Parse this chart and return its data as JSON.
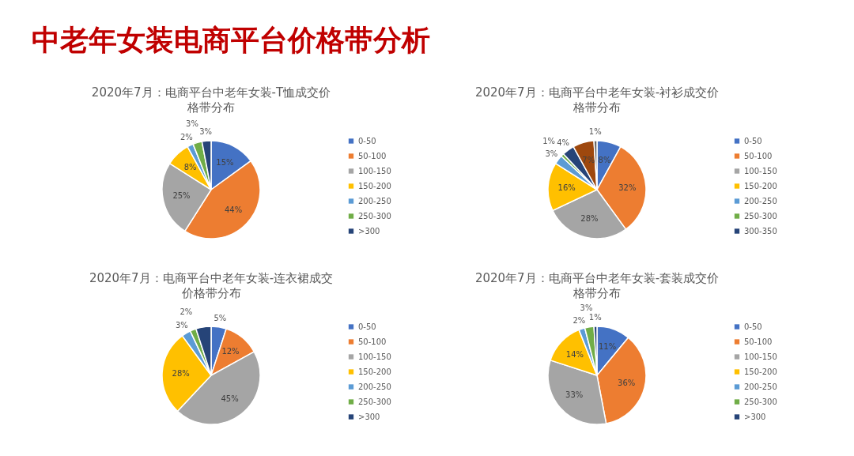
{
  "chart_data": [
    {
      "type": "other",
      "title": "中老年女装电商平台价格带分析"
    },
    {
      "type": "pie",
      "title": "2020年7月：电商平台中老年女装-T恤成交价格带分布",
      "categories": [
        "0-50",
        "50-100",
        "100-150",
        "150-200",
        "200-250",
        "250-300",
        ">300"
      ],
      "values": [
        15,
        44,
        25,
        8,
        2,
        3,
        3
      ],
      "colors": [
        "#4472c4",
        "#ed7d31",
        "#a5a5a5",
        "#ffc000",
        "#5b9bd5",
        "#70ad47",
        "#264478"
      ],
      "value_labels": [
        "15%",
        "44%",
        "25%",
        "8%",
        "2%",
        "3%",
        "3%"
      ],
      "legend": "right"
    },
    {
      "type": "pie",
      "title": "2020年7月：电商平台中老年女装-衬衫成交价格带分布",
      "categories": [
        "0-50",
        "50-100",
        "100-150",
        "150-200",
        "200-250",
        "250-300",
        "300-350",
        null,
        null
      ],
      "values": [
        8,
        32,
        28,
        16,
        3,
        1,
        4,
        7,
        1
      ],
      "colors": [
        "#4472c4",
        "#ed7d31",
        "#a5a5a5",
        "#ffc000",
        "#5b9bd5",
        "#70ad47",
        "#264478",
        "#9e480e",
        "#636363"
      ],
      "value_labels": [
        "8%",
        "32%",
        "28%",
        "16%",
        "3%",
        "1%",
        "4%",
        "7%",
        "1%"
      ],
      "legend": "right"
    },
    {
      "type": "pie",
      "title": "2020年7月：电商平台中老年女装-连衣裙成交价格带分布",
      "categories": [
        "0-50",
        "50-100",
        "100-150",
        "150-200",
        "200-250",
        "250-300",
        ">300"
      ],
      "values": [
        5,
        12,
        45,
        28,
        3,
        2,
        5
      ],
      "colors": [
        "#4472c4",
        "#ed7d31",
        "#a5a5a5",
        "#ffc000",
        "#5b9bd5",
        "#70ad47",
        "#264478"
      ],
      "value_labels": [
        "5%",
        "12%",
        "45%",
        "28%",
        "3%",
        "2%",
        null
      ],
      "legend": "right"
    },
    {
      "type": "pie",
      "title": "2020年7月：电商平台中老年女装-套装成交价格带分布",
      "categories": [
        "0-50",
        "50-100",
        "100-150",
        "150-200",
        "200-250",
        "250-300",
        ">300"
      ],
      "values": [
        11,
        36,
        33,
        14,
        2,
        3,
        1
      ],
      "colors": [
        "#4472c4",
        "#ed7d31",
        "#a5a5a5",
        "#ffc000",
        "#5b9bd5",
        "#70ad47",
        "#264478"
      ],
      "value_labels": [
        "11%",
        "36%",
        "33%",
        "14%",
        "2%",
        "3%",
        "1%"
      ],
      "legend": "right"
    }
  ]
}
